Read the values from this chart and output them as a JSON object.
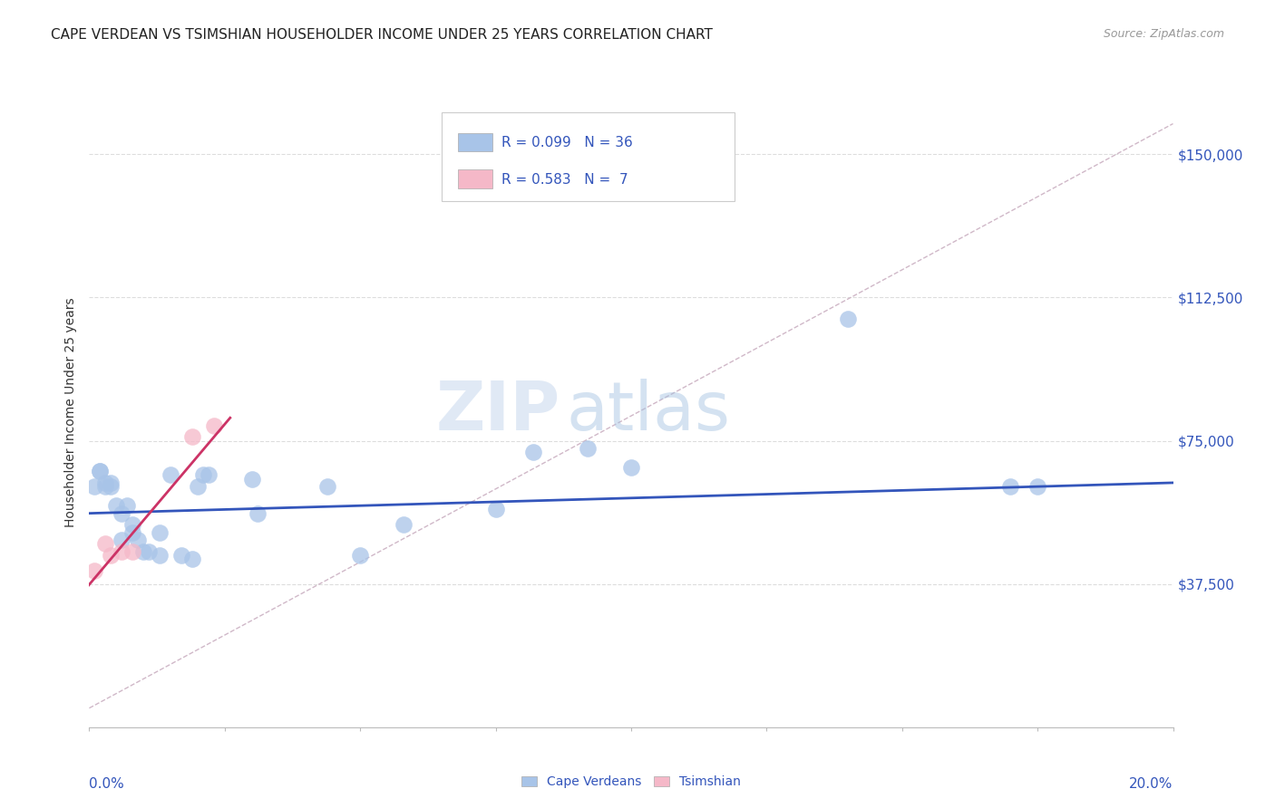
{
  "title": "CAPE VERDEAN VS TSIMSHIAN HOUSEHOLDER INCOME UNDER 25 YEARS CORRELATION CHART",
  "source": "Source: ZipAtlas.com",
  "ylabel": "Householder Income Under 25 years",
  "watermark_zip": "ZIP",
  "watermark_atlas": "atlas",
  "legend_r1": "R = 0.099",
  "legend_n1": "N = 36",
  "legend_r2": "R = 0.583",
  "legend_n2": "N =  7",
  "legend_label1": "Cape Verdeans",
  "legend_label2": "Tsimshian",
  "xlim": [
    0.0,
    0.2
  ],
  "ylim": [
    0,
    165000
  ],
  "yticks": [
    37500,
    75000,
    112500,
    150000
  ],
  "ytick_labels": [
    "$37,500",
    "$75,000",
    "$112,500",
    "$150,000"
  ],
  "xticks": [
    0.0,
    0.025,
    0.05,
    0.075,
    0.1,
    0.125,
    0.15,
    0.175,
    0.2
  ],
  "blue_scatter_color": "#a8c4e8",
  "blue_line_color": "#3355bb",
  "pink_scatter_color": "#f5b8c8",
  "pink_line_color": "#cc3366",
  "dashed_line_color": "#d0b8c8",
  "text_color": "#3355bb",
  "grid_color": "#dddddd",
  "cape_verdean_x": [
    0.001,
    0.002,
    0.002,
    0.003,
    0.003,
    0.004,
    0.004,
    0.005,
    0.006,
    0.006,
    0.007,
    0.008,
    0.008,
    0.009,
    0.01,
    0.011,
    0.013,
    0.013,
    0.015,
    0.017,
    0.019,
    0.02,
    0.021,
    0.022,
    0.03,
    0.031,
    0.044,
    0.05,
    0.058,
    0.075,
    0.082,
    0.092,
    0.1,
    0.14,
    0.17,
    0.175
  ],
  "cape_verdean_y": [
    63000,
    67000,
    67000,
    63000,
    64000,
    63000,
    64000,
    58000,
    56000,
    49000,
    58000,
    53000,
    51000,
    49000,
    46000,
    46000,
    51000,
    45000,
    66000,
    45000,
    44000,
    63000,
    66000,
    66000,
    65000,
    56000,
    63000,
    45000,
    53000,
    57000,
    72000,
    73000,
    68000,
    107000,
    63000,
    63000
  ],
  "tsimshian_x": [
    0.001,
    0.003,
    0.004,
    0.006,
    0.008,
    0.019,
    0.023
  ],
  "tsimshian_y": [
    41000,
    48000,
    45000,
    46000,
    46000,
    76000,
    79000
  ],
  "blue_trend_x": [
    0.0,
    0.2
  ],
  "blue_trend_y": [
    56000,
    64000
  ],
  "pink_trend_x": [
    -0.002,
    0.026
  ],
  "pink_trend_y": [
    34000,
    81000
  ],
  "dashed_trend_x": [
    0.0,
    0.2
  ],
  "dashed_trend_y": [
    5000,
    158000
  ]
}
